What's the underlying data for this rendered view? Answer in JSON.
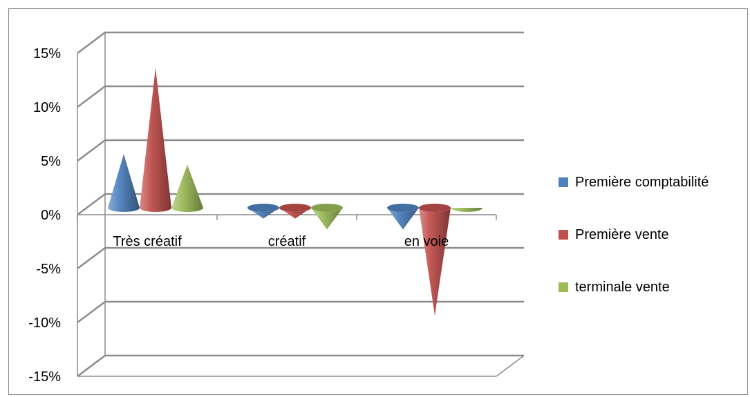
{
  "chart_data": {
    "type": "bar",
    "style": "3d-cone",
    "y_ticks": [
      "15%",
      "10%",
      "5%",
      "0%",
      "-5%",
      "-10%",
      "-15%"
    ],
    "ylim": [
      -0.15,
      0.15
    ],
    "categories": [
      "Très créatif",
      "créatif",
      "en voie"
    ],
    "series": [
      {
        "name": "Première comptabilité",
        "color": "#4F81BD",
        "values": [
          0.05,
          -0.01,
          -0.02
        ]
      },
      {
        "name": "Première vente",
        "color": "#C0504D",
        "values": [
          0.13,
          -0.01,
          -0.1
        ]
      },
      {
        "name": "terminale vente",
        "color": "#9BBB59",
        "values": [
          0.04,
          -0.02,
          0.0
        ]
      }
    ],
    "grid": true,
    "legend_position": "right"
  }
}
